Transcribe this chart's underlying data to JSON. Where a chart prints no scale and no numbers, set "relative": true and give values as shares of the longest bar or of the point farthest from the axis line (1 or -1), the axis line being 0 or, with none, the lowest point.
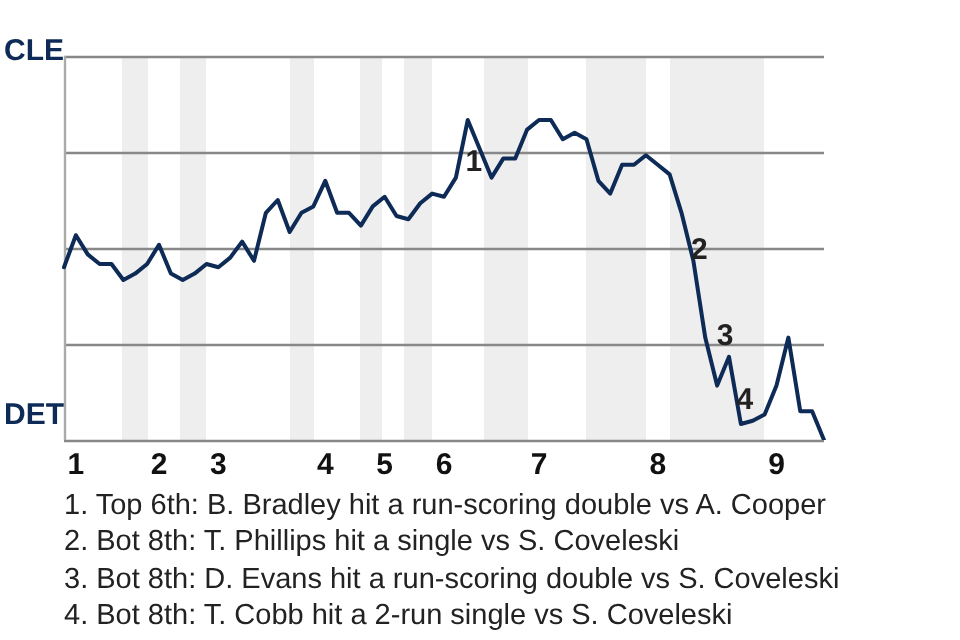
{
  "chart_data": {
    "type": "line",
    "relative": true,
    "categories": [
      null,
      "1",
      null,
      null,
      null,
      null,
      null,
      null,
      "2",
      null,
      null,
      null,
      null,
      "3",
      null,
      null,
      null,
      null,
      null,
      null,
      null,
      null,
      "4",
      null,
      null,
      null,
      null,
      "5",
      null,
      null,
      null,
      null,
      "6",
      null,
      null,
      null,
      null,
      null,
      null,
      null,
      "7",
      null,
      null,
      null,
      null,
      null,
      null,
      null,
      null,
      null,
      "8",
      null,
      null,
      null,
      null,
      null,
      null,
      null,
      null,
      null,
      "9",
      null,
      null,
      null,
      null
    ],
    "series": [
      {
        "color": "#0d2b56",
        "values": [
          0.54,
          0.64,
          0.58,
          0.55,
          0.55,
          0.5,
          0.52,
          0.55,
          0.61,
          0.52,
          0.5,
          0.52,
          0.55,
          0.54,
          0.57,
          0.62,
          0.56,
          0.71,
          0.75,
          0.65,
          0.71,
          0.73,
          0.81,
          0.71,
          0.71,
          0.67,
          0.73,
          0.76,
          0.7,
          0.69,
          0.74,
          0.77,
          0.76,
          0.82,
          1,
          0.91,
          0.82,
          0.88,
          0.88,
          0.97,
          1,
          1,
          0.94,
          0.96,
          0.94,
          0.81,
          0.77,
          0.86,
          0.86,
          0.89,
          0.86,
          0.83,
          0.71,
          0.56,
          0.32,
          0.17,
          0.26,
          0.05,
          0.06,
          0.08,
          0.17,
          0.32,
          0.09,
          0.09,
          0
        ]
      }
    ],
    "grid": "y",
    "marker": "none",
    "line_style": "solid",
    "legend": false,
    "annotations": [
      "CLE",
      "DET",
      "1",
      "2",
      "3",
      "4",
      "1. Top 6th: B. Bradley hit a run-scoring double vs A. Cooper",
      "2. Bot 8th: T. Phillips hit a single vs S. Coveleski",
      "3. Bot 8th: D. Evans hit a run-scoring double vs S. Coveleski",
      "4. Bot 8th: T. Cobb hit a 2-run single vs S. Coveleski"
    ]
  }
}
